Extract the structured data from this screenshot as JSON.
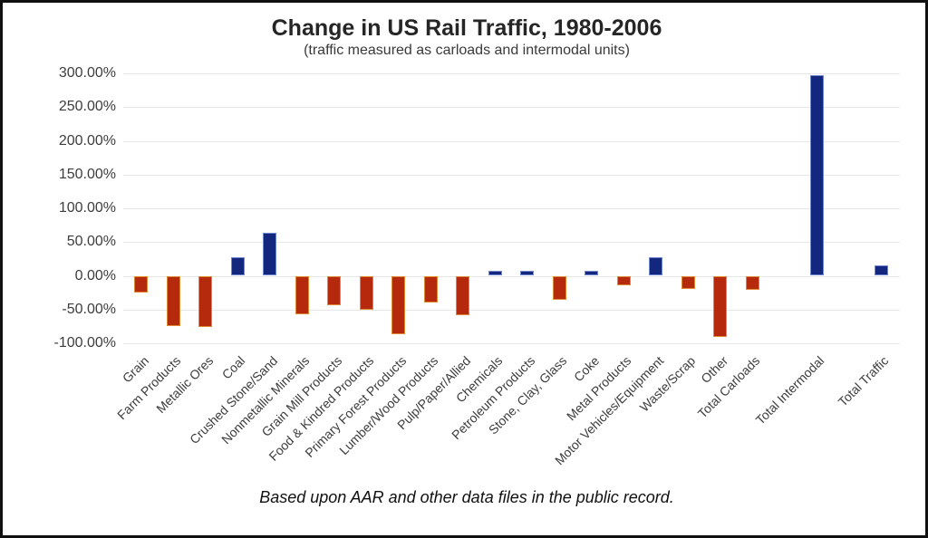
{
  "header": {
    "title": "Change in US Rail Traffic, 1980-2006",
    "subtitle": "(traffic measured as carloads and intermodal units)"
  },
  "footer": {
    "note": "Based upon AAR and other data files in the public record."
  },
  "chart_data": {
    "type": "bar",
    "title": "Change in US Rail Traffic, 1980-2006",
    "subtitle": "(traffic measured as carloads and intermodal units)",
    "annotation": "Based upon AAR and other data files in the public record.",
    "unit": "%",
    "categories": [
      "Grain",
      "Farm Products",
      "Metallic Ores",
      "Coal",
      "Crushed Stone/Sand",
      "Nonmetallic Minerals",
      "Grain Mill Products",
      "Food & Kindred Products",
      "Primary Forest Products",
      "Lumber/Wood Products",
      "Pulp/Paper/Allied",
      "Chemicals",
      "Petroleum Products",
      "Stone, Clay, Glass",
      "Coke",
      "Metal Products",
      "Motor Vehicles/Equipment",
      "Waste/Scrap",
      "Other",
      "Total Carloads",
      "Total Intermodal",
      "Total Traffic"
    ],
    "values": [
      -25,
      -75,
      -76,
      28,
      64,
      -57,
      -43,
      -51,
      -87,
      -39,
      -59,
      7,
      7,
      -36,
      8,
      -14,
      28,
      -20,
      -90,
      -21,
      297,
      15
    ],
    "slots": [
      0,
      1,
      2,
      3,
      4,
      5,
      6,
      7,
      8,
      9,
      10,
      11,
      12,
      13,
      14,
      15,
      16,
      17,
      18,
      19,
      21,
      23
    ],
    "ylim": [
      -100,
      300
    ],
    "ytick_step": 50,
    "yticks": [
      300,
      250,
      200,
      150,
      100,
      50,
      0,
      -50,
      -100
    ],
    "ytick_labels": [
      "300.00%",
      "250.00%",
      "200.00%",
      "150.00%",
      "100.00%",
      "50.00%",
      "0.00%",
      "-50.00%",
      "-100.00%"
    ],
    "grid": true,
    "legend": false,
    "colors": {
      "positive_fill": "#14277e",
      "positive_border": "#7188cf",
      "negative_fill": "#b52a0c",
      "negative_border": "#df8a33",
      "gridline": "#e7e7e7",
      "text": "#3d3d3d"
    }
  }
}
